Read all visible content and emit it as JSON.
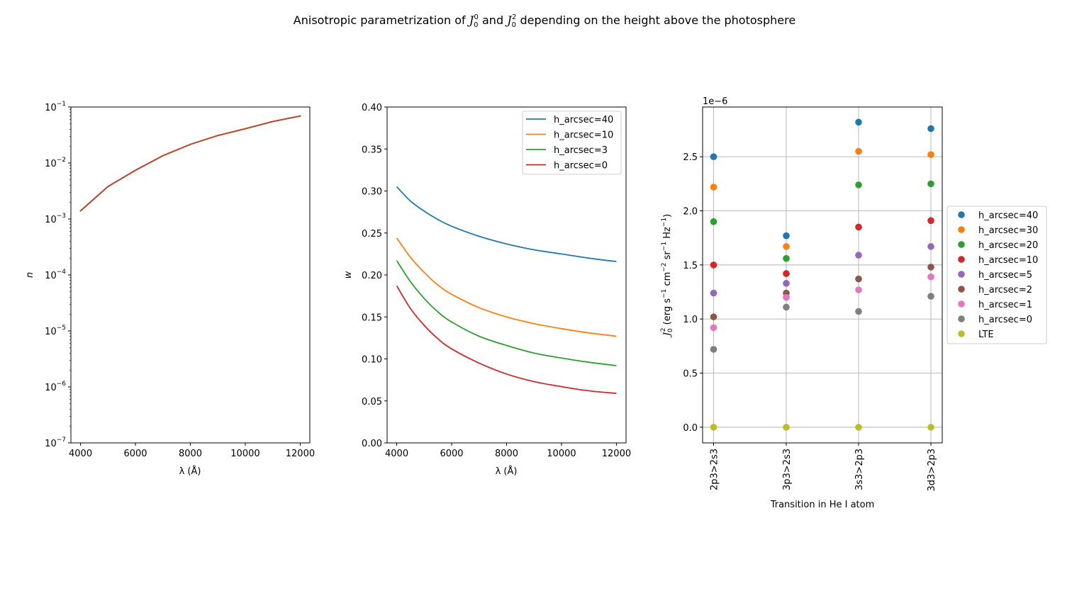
{
  "figure": {
    "suptitle_parts": [
      "Anisotropic parametrization of ",
      "J",
      "0",
      "0",
      " and ",
      "J",
      "0",
      "2",
      " depending on the height above the photosphere"
    ]
  },
  "chart_data": [
    {
      "type": "line",
      "title": "",
      "xlabel": "λ (Å)",
      "ylabel": "n",
      "yscale": "log",
      "xlim": [
        3650,
        12350
      ],
      "ylim": [
        1e-07,
        0.1
      ],
      "xticks": [
        4000,
        6000,
        8000,
        10000,
        12000
      ],
      "xtick_labels": [
        "4000",
        "6000",
        "8000",
        "10000",
        "12000"
      ],
      "yticks_exp": [
        -7,
        -6,
        -5,
        -4,
        -3,
        -2,
        -1
      ],
      "grid": false,
      "legend": null,
      "x": [
        4000,
        5000,
        6000,
        7000,
        8000,
        9000,
        10000,
        11000,
        12000
      ],
      "series": [
        {
          "name": "h_arcsec=40",
          "color": "#1f77b4",
          "values": [
            0.0014,
            0.0038,
            0.0074,
            0.0135,
            0.0215,
            0.031,
            0.041,
            0.055,
            0.069
          ]
        },
        {
          "name": "h_arcsec=10",
          "color": "#ff7f0e",
          "values": [
            0.0014,
            0.0038,
            0.0074,
            0.0135,
            0.0215,
            0.031,
            0.041,
            0.055,
            0.069
          ]
        },
        {
          "name": "h_arcsec=3",
          "color": "#2ca02c",
          "values": [
            0.0014,
            0.0038,
            0.0074,
            0.0135,
            0.0215,
            0.031,
            0.041,
            0.055,
            0.069
          ]
        },
        {
          "name": "h_arcsec=0",
          "color": "#c8422c",
          "values": [
            0.0014,
            0.0038,
            0.0074,
            0.0135,
            0.0215,
            0.031,
            0.041,
            0.055,
            0.069
          ]
        }
      ]
    },
    {
      "type": "line",
      "title": "",
      "xlabel": "λ (Å)",
      "ylabel": "w",
      "xlim": [
        3650,
        12350
      ],
      "ylim": [
        0.0,
        0.4
      ],
      "xticks": [
        4000,
        6000,
        8000,
        10000,
        12000
      ],
      "xtick_labels": [
        "4000",
        "6000",
        "8000",
        "10000",
        "12000"
      ],
      "yticks": [
        0.0,
        0.05,
        0.1,
        0.15,
        0.2,
        0.25,
        0.3,
        0.35,
        0.4
      ],
      "ytick_labels": [
        "0.00",
        "0.05",
        "0.10",
        "0.15",
        "0.20",
        "0.25",
        "0.30",
        "0.35",
        "0.40"
      ],
      "grid": false,
      "legend": "top-right",
      "x": [
        4000,
        4500,
        5000,
        5500,
        6000,
        7000,
        8000,
        9000,
        10000,
        11000,
        12000
      ],
      "series": [
        {
          "name": "h_arcsec=40",
          "color": "#1f77b4",
          "values": [
            0.305,
            0.288,
            0.276,
            0.266,
            0.258,
            0.246,
            0.237,
            0.23,
            0.225,
            0.22,
            0.216
          ]
        },
        {
          "name": "h_arcsec=10",
          "color": "#ff7f0e",
          "values": [
            0.244,
            0.221,
            0.203,
            0.188,
            0.177,
            0.161,
            0.15,
            0.142,
            0.136,
            0.131,
            0.127
          ]
        },
        {
          "name": "h_arcsec=3",
          "color": "#2ca02c",
          "values": [
            0.217,
            0.192,
            0.172,
            0.156,
            0.144,
            0.127,
            0.116,
            0.107,
            0.101,
            0.096,
            0.092
          ]
        },
        {
          "name": "h_arcsec=0",
          "color": "#d62728",
          "values": [
            0.187,
            0.16,
            0.14,
            0.124,
            0.112,
            0.095,
            0.082,
            0.073,
            0.067,
            0.062,
            0.059
          ]
        }
      ]
    },
    {
      "type": "scatter",
      "title": "",
      "xlabel": "Transition in He I atom",
      "ylabel_parts": [
        "J",
        "0",
        "2",
        " (erg s",
        "−1",
        " cm",
        "−2",
        " sr",
        "−1",
        " Hz",
        "−1",
        ")"
      ],
      "offset_text": "1e−6",
      "categories": [
        "2p3>2s3",
        "3p3>2s3",
        "3s3>2p3",
        "3d3>2p3"
      ],
      "ylim": [
        -0.145,
        2.96
      ],
      "yscale_factor": "1e-6",
      "yticks": [
        0.0,
        0.5,
        1.0,
        1.5,
        2.0,
        2.5
      ],
      "ytick_labels": [
        "0.0",
        "0.5",
        "1.0",
        "1.5",
        "2.0",
        "2.5"
      ],
      "grid": true,
      "legend": "center-right-outside",
      "series": [
        {
          "name": "h_arcsec=40",
          "color": "#1f77b4",
          "values": [
            2.5,
            1.77,
            2.82,
            2.76
          ]
        },
        {
          "name": "h_arcsec=30",
          "color": "#ff7f0e",
          "values": [
            2.22,
            1.67,
            2.55,
            2.52
          ]
        },
        {
          "name": "h_arcsec=20",
          "color": "#2ca02c",
          "values": [
            1.9,
            1.56,
            2.24,
            2.25
          ]
        },
        {
          "name": "h_arcsec=10",
          "color": "#d62728",
          "values": [
            1.5,
            1.42,
            1.85,
            1.91
          ]
        },
        {
          "name": "h_arcsec=5",
          "color": "#9467bd",
          "values": [
            1.24,
            1.33,
            1.59,
            1.67
          ]
        },
        {
          "name": "h_arcsec=2",
          "color": "#8c564b",
          "values": [
            1.02,
            1.24,
            1.37,
            1.48
          ]
        },
        {
          "name": "h_arcsec=1",
          "color": "#e377c2",
          "values": [
            0.92,
            1.2,
            1.27,
            1.39
          ]
        },
        {
          "name": "h_arcsec=0",
          "color": "#7f7f7f",
          "values": [
            0.72,
            1.11,
            1.07,
            1.21
          ]
        },
        {
          "name": "LTE",
          "color": "#bcbd22",
          "values": [
            0.0,
            0.0,
            0.0,
            0.0
          ]
        }
      ]
    }
  ]
}
